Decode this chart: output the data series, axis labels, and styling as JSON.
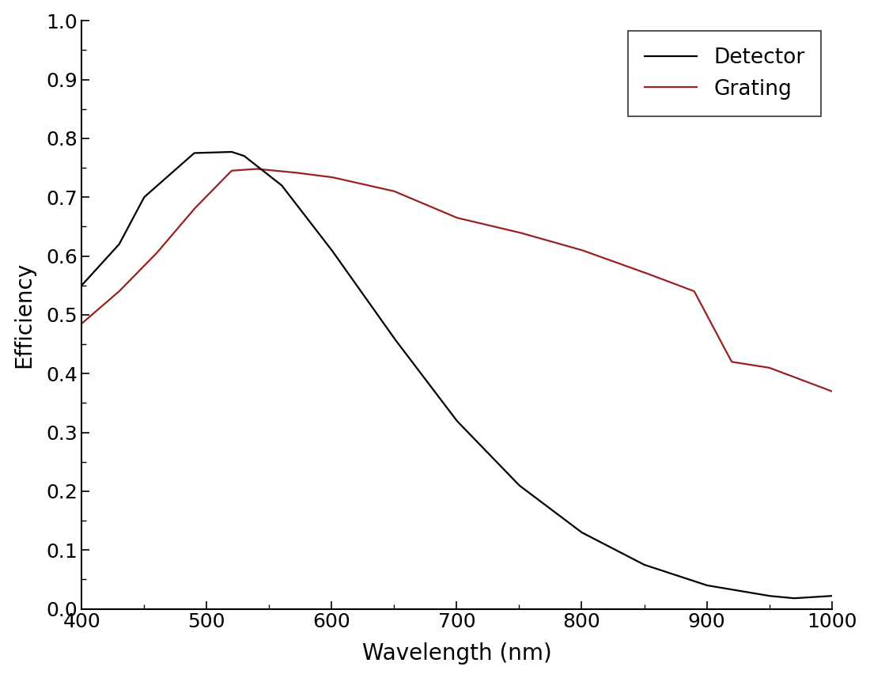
{
  "detector_x": [
    400,
    430,
    450,
    490,
    520,
    530,
    560,
    600,
    650,
    700,
    750,
    800,
    850,
    900,
    950,
    970,
    1000
  ],
  "detector_y": [
    0.55,
    0.62,
    0.7,
    0.775,
    0.777,
    0.77,
    0.72,
    0.61,
    0.46,
    0.32,
    0.21,
    0.13,
    0.075,
    0.04,
    0.022,
    0.018,
    0.022
  ],
  "grating_x": [
    400,
    430,
    460,
    490,
    520,
    540,
    570,
    600,
    650,
    700,
    750,
    800,
    850,
    890,
    920,
    950,
    1000
  ],
  "grating_y": [
    0.485,
    0.54,
    0.605,
    0.68,
    0.745,
    0.748,
    0.742,
    0.734,
    0.71,
    0.665,
    0.64,
    0.61,
    0.572,
    0.54,
    0.42,
    0.41,
    0.37
  ],
  "detector_color": "#000000",
  "grating_color": "#9B2020",
  "detector_label": "Detector",
  "grating_label": "Grating",
  "xlabel": "Wavelength (nm)",
  "ylabel": "Efficiency",
  "xlim": [
    400,
    1000
  ],
  "ylim": [
    0.0,
    1.0
  ],
  "xticks": [
    400,
    500,
    600,
    700,
    800,
    900,
    1000
  ],
  "yticks": [
    0.0,
    0.1,
    0.2,
    0.3,
    0.4,
    0.5,
    0.6,
    0.7,
    0.8,
    0.9,
    1.0
  ],
  "line_width": 1.6,
  "legend_loc": "upper right",
  "background_color": "#ffffff",
  "font_size": 20,
  "tick_font_size": 18,
  "legend_font_size": 19
}
